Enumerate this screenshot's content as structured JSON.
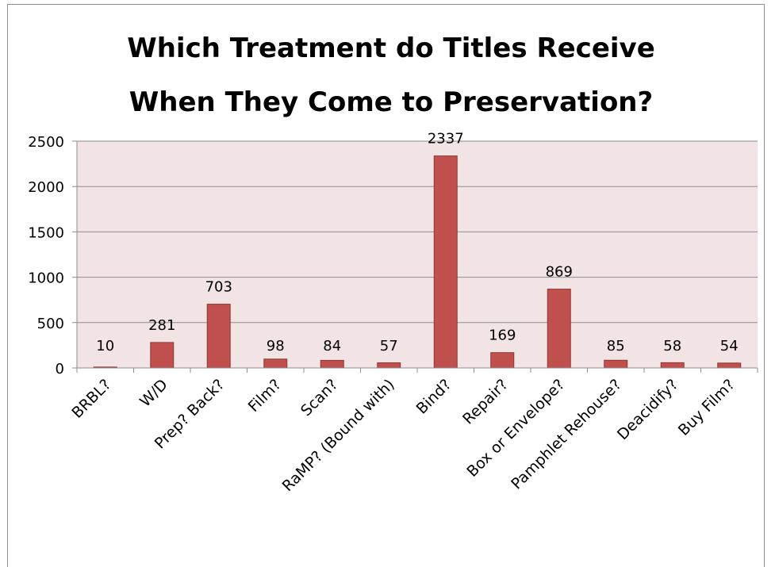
{
  "chart_data": {
    "type": "bar",
    "title_lines": [
      "Which Treatment do Titles Receive",
      "When They Come to Preservation?"
    ],
    "categories": [
      "BRBL?",
      "W/D",
      "Prep? Back?",
      "Film?",
      "Scan?",
      "RaMP? (Bound with)",
      "Bind?",
      "Repair?",
      "Box or Envelope?",
      "Pamphlet Rehouse?",
      "Deacidify?",
      "Buy Film?"
    ],
    "values": [
      10,
      281,
      703,
      98,
      84,
      57,
      2337,
      169,
      869,
      85,
      58,
      54
    ],
    "data_labels": [
      "10",
      "281",
      "703",
      "98",
      "84",
      "57",
      "2337",
      "169",
      "869",
      "85",
      "58",
      "54"
    ],
    "ylim": [
      0,
      2500
    ],
    "yticks": [
      0,
      500,
      1000,
      1500,
      2000,
      2500
    ],
    "ytick_labels": [
      "0",
      "500",
      "1000",
      "1500",
      "2000",
      "2500"
    ],
    "xlabel": "",
    "ylabel": "",
    "grid": true,
    "legend": false,
    "colors": {
      "bar_fill": "#c0504d",
      "bar_stroke": "#8c3836",
      "plot_background": "#f2e4e4",
      "gridline": "#8c8c8c"
    }
  }
}
